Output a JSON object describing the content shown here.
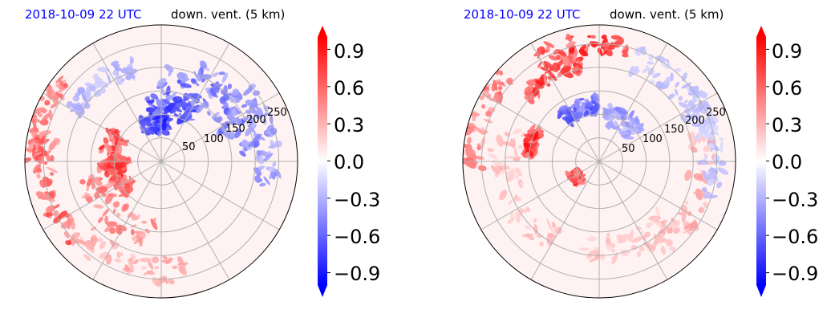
{
  "chart_data": [
    {
      "type": "heatmap",
      "projection": "polar",
      "title_left": "2018-10-09 22 UTC",
      "title_right": "down. vent. (5 km)",
      "radial_ticks": [
        "50",
        "100",
        "150",
        "200",
        "250"
      ],
      "radial_tick_values": [
        50,
        100,
        150,
        200,
        250
      ],
      "r_max": 290,
      "colorbar": {
        "ticks": [
          "0.9",
          "0.6",
          "0.3",
          "0.0",
          "−0.3",
          "−0.6",
          "−0.9"
        ],
        "tick_values": [
          0.9,
          0.6,
          0.3,
          0.0,
          -0.3,
          -0.6,
          -0.9
        ],
        "range": [
          -1.0,
          1.0
        ],
        "colormap": "bwr",
        "extend": "both"
      },
      "features": [
        {
          "theta": 100,
          "r": 80,
          "value": -1.0,
          "spread": 25
        },
        {
          "theta": 80,
          "r": 120,
          "value": -0.9,
          "spread": 30
        },
        {
          "theta": 55,
          "r": 170,
          "value": -0.7,
          "spread": 45
        },
        {
          "theta": 35,
          "r": 200,
          "value": -0.6,
          "spread": 40
        },
        {
          "theta": 15,
          "r": 230,
          "value": -0.5,
          "spread": 35
        },
        {
          "theta": 170,
          "r": 110,
          "value": 0.95,
          "spread": 30
        },
        {
          "theta": 200,
          "r": 90,
          "value": 0.9,
          "spread": 30
        },
        {
          "theta": 230,
          "r": 150,
          "value": 0.6,
          "spread": 45
        },
        {
          "theta": 195,
          "r": 250,
          "value": 0.8,
          "spread": 35
        },
        {
          "theta": 160,
          "r": 270,
          "value": 0.7,
          "spread": 25
        },
        {
          "theta": 250,
          "r": 230,
          "value": 0.4,
          "spread": 40
        },
        {
          "theta": 130,
          "r": 210,
          "value": -0.4,
          "spread": 30
        }
      ]
    },
    {
      "type": "heatmap",
      "projection": "polar",
      "title_left": "2018-10-09 22 UTC",
      "title_right": "down. vent. (5 km)",
      "radial_ticks": [
        "50",
        "100",
        "150",
        "200",
        "250"
      ],
      "radial_tick_values": [
        50,
        100,
        150,
        200,
        250
      ],
      "r_max": 290,
      "colorbar": {
        "ticks": [
          "0.9",
          "0.6",
          "0.3",
          "0.0",
          "−0.3",
          "−0.6",
          "−0.9"
        ],
        "tick_values": [
          0.9,
          0.6,
          0.3,
          0.0,
          -0.3,
          -0.6,
          -0.9
        ],
        "range": [
          -1.0,
          1.0
        ],
        "colormap": "bwr",
        "extend": "both"
      },
      "features": [
        {
          "theta": 100,
          "r": 250,
          "value": 1.0,
          "spread": 30
        },
        {
          "theta": 120,
          "r": 210,
          "value": 0.9,
          "spread": 25
        },
        {
          "theta": 165,
          "r": 150,
          "value": 1.0,
          "spread": 15
        },
        {
          "theta": 215,
          "r": 60,
          "value": 0.95,
          "spread": 15
        },
        {
          "theta": 160,
          "r": 270,
          "value": 0.6,
          "spread": 30
        },
        {
          "theta": 110,
          "r": 120,
          "value": -0.8,
          "spread": 25
        },
        {
          "theta": 60,
          "r": 100,
          "value": -0.5,
          "spread": 30
        },
        {
          "theta": 40,
          "r": 230,
          "value": -0.3,
          "spread": 40
        },
        {
          "theta": 340,
          "r": 220,
          "value": 0.4,
          "spread": 45
        },
        {
          "theta": 290,
          "r": 190,
          "value": 0.3,
          "spread": 40
        },
        {
          "theta": 200,
          "r": 200,
          "value": 0.3,
          "spread": 50
        },
        {
          "theta": 10,
          "r": 240,
          "value": -0.3,
          "spread": 35
        }
      ]
    }
  ]
}
